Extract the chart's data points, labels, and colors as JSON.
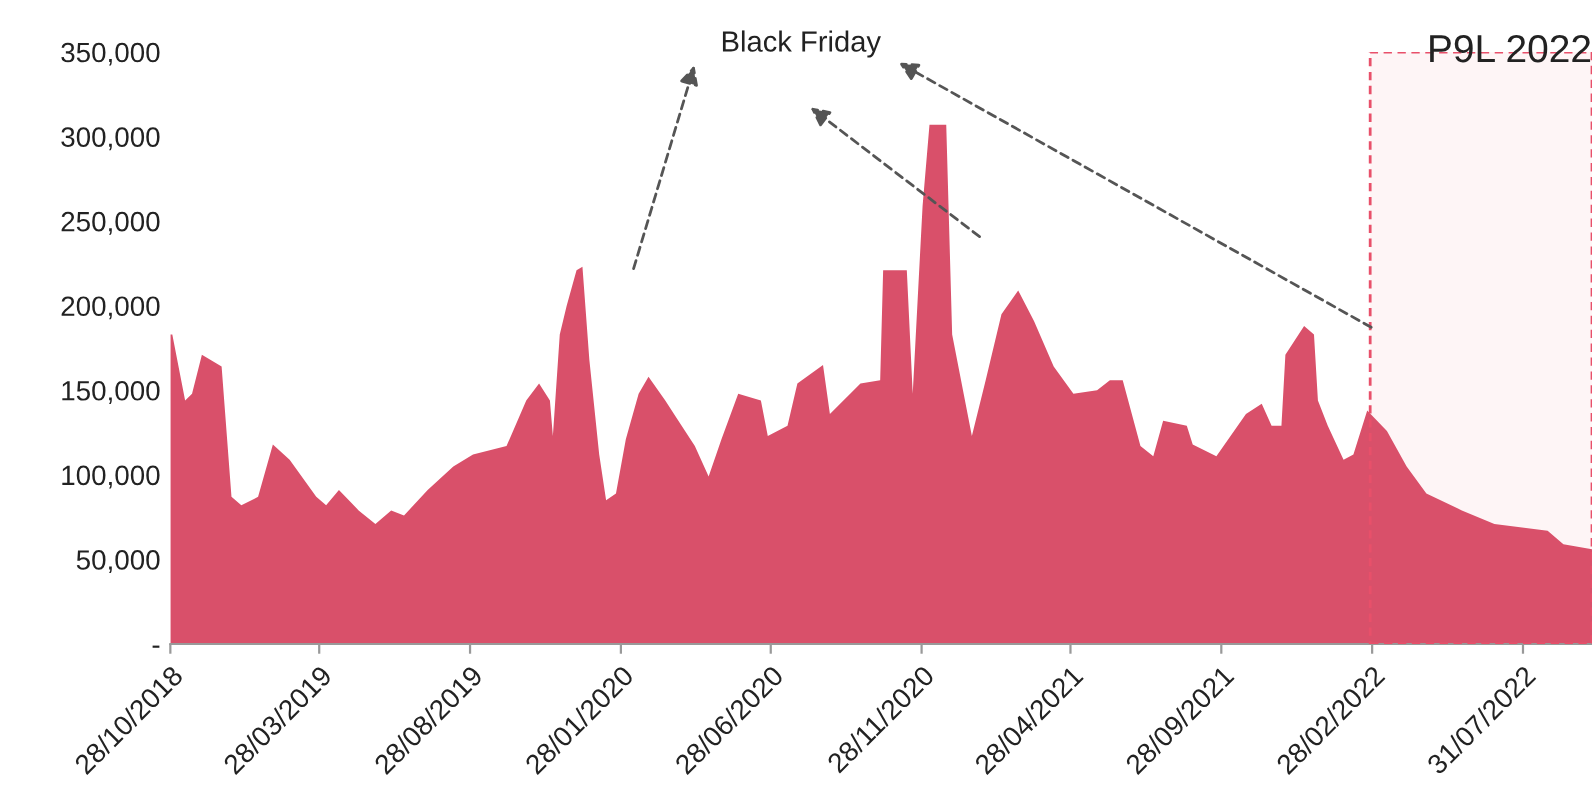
{
  "chart_data": {
    "type": "area",
    "x": [
      "2018-10-28",
      "2018-10-30",
      "2018-11-12",
      "2018-11-19",
      "2018-11-29",
      "2018-12-19",
      "2018-12-29",
      "2019-01-08",
      "2019-01-25",
      "2019-02-09",
      "2019-02-26",
      "2019-03-25",
      "2019-04-04",
      "2019-04-17",
      "2019-05-07",
      "2019-05-24",
      "2019-06-09",
      "2019-06-22",
      "2019-07-16",
      "2019-08-11",
      "2019-08-31",
      "2019-10-04",
      "2019-10-24",
      "2019-11-06",
      "2019-11-17",
      "2019-11-20",
      "2019-11-27",
      "2019-12-04",
      "2019-12-14",
      "2019-12-20",
      "2019-12-27",
      "2020-01-06",
      "2020-01-13",
      "2020-01-23",
      "2020-02-02",
      "2020-02-15",
      "2020-02-25",
      "2020-03-13",
      "2020-03-23",
      "2020-04-12",
      "2020-04-26",
      "2020-05-09",
      "2020-05-26",
      "2020-06-18",
      "2020-06-25",
      "2020-07-15",
      "2020-07-25",
      "2020-08-20",
      "2020-08-27",
      "2020-09-27",
      "2020-10-17",
      "2020-10-20",
      "2020-11-13",
      "2020-11-19",
      "2020-11-29",
      "2020-12-06",
      "2020-12-23",
      "2020-12-29",
      "2021-01-18",
      "2021-02-01",
      "2021-02-17",
      "2021-03-06",
      "2021-03-22",
      "2021-04-11",
      "2021-05-01",
      "2021-05-25",
      "2021-06-07",
      "2021-06-20",
      "2021-07-08",
      "2021-07-21",
      "2021-07-31",
      "2021-08-24",
      "2021-08-30",
      "2021-09-23",
      "2021-10-23",
      "2021-11-08",
      "2021-11-18",
      "2021-11-28",
      "2021-12-02",
      "2021-12-21",
      "2021-12-31",
      "2022-01-04",
      "2022-01-14",
      "2022-01-30",
      "2022-02-09",
      "2022-02-23",
      "2022-03-15",
      "2022-04-04",
      "2022-04-24",
      "2022-05-30",
      "2022-07-02",
      "2022-08-25",
      "2022-09-10",
      "2022-10-09"
    ],
    "series": [
      {
        "color": "#d9506a",
        "values": [
          183000,
          183000,
          144000,
          148000,
          171000,
          164000,
          87000,
          82000,
          87000,
          118000,
          109000,
          87000,
          82000,
          91000,
          79000,
          71000,
          79000,
          76000,
          91000,
          105000,
          112000,
          117000,
          144000,
          154000,
          144000,
          123000,
          183000,
          200000,
          221000,
          223000,
          168000,
          112000,
          85000,
          89000,
          121000,
          148000,
          158000,
          144000,
          135000,
          117000,
          99000,
          121000,
          148000,
          144000,
          123000,
          129000,
          154000,
          165000,
          136000,
          154000,
          156000,
          221000,
          221000,
          148000,
          259000,
          307000,
          307000,
          183000,
          123000,
          156000,
          195000,
          209000,
          191000,
          164000,
          148000,
          150000,
          156000,
          156000,
          117000,
          111000,
          132000,
          129000,
          118000,
          111000,
          136000,
          142000,
          129000,
          129000,
          171000,
          188000,
          183000,
          144000,
          129000,
          109000,
          112000,
          138000,
          126000,
          105000,
          89000,
          79000,
          71000,
          67000,
          59000,
          56000
        ]
      }
    ],
    "xlim": [
      "2018-10-28",
      "2022-10-09"
    ],
    "xticks": [
      {
        "value": "2018-10-28",
        "label": "28/10/2018"
      },
      {
        "value": "2019-03-28",
        "label": "28/03/2019"
      },
      {
        "value": "2019-08-28",
        "label": "28/08/2019"
      },
      {
        "value": "2020-01-28",
        "label": "28/01/2020"
      },
      {
        "value": "2020-06-28",
        "label": "28/06/2020"
      },
      {
        "value": "2020-11-28",
        "label": "28/11/2020"
      },
      {
        "value": "2021-04-28",
        "label": "28/04/2021"
      },
      {
        "value": "2021-09-28",
        "label": "28/09/2021"
      },
      {
        "value": "2022-02-28",
        "label": "28/02/2022"
      },
      {
        "value": "2022-07-31",
        "label": "31/07/2022"
      }
    ],
    "ylim": [
      0,
      350000
    ],
    "yticks": [
      {
        "value": 0,
        "label": "-"
      },
      {
        "value": 50000,
        "label": "50,000"
      },
      {
        "value": 100000,
        "label": "100,000"
      },
      {
        "value": 150000,
        "label": "150,000"
      },
      {
        "value": 200000,
        "label": "200,000"
      },
      {
        "value": 250000,
        "label": "250,000"
      },
      {
        "value": 300000,
        "label": "300,000"
      },
      {
        "value": 350000,
        "label": "350,000"
      }
    ],
    "bands": [
      {
        "axis": "x",
        "from": "2022-02-26",
        "to": "2022-10-09",
        "label": "P9L 2022",
        "color": "#e8506a"
      }
    ],
    "annotations": [
      "Black Friday"
    ],
    "grid": false
  }
}
